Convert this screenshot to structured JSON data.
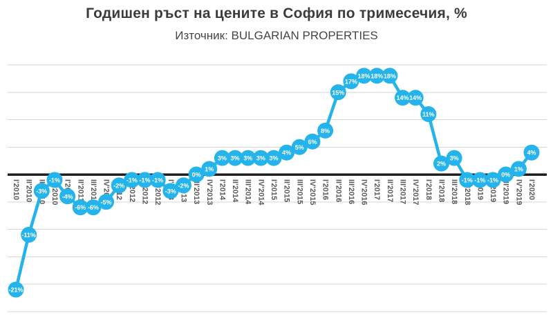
{
  "header": {
    "title": "Годишен ръст на цените в София по тримесечия, %",
    "subtitle": "Източник: BULGARIAN PROPERTIES"
  },
  "colors": {
    "marker": "#24b3ea",
    "line": "#24b3ea",
    "marker_text": "#ffffff",
    "grid": "#d6d6d6",
    "zero_axis": "#1f1f1f",
    "axis_label": "#595959",
    "title_text": "#3b3b3b"
  },
  "chart_data": {
    "type": "line",
    "title": "Годишен ръст на цените в София по тримесечия, %",
    "source": "Източник: BULGARIAN PROPERTIES",
    "unit": "%",
    "legend": "none",
    "grid": {
      "show": true,
      "min": -25,
      "max": 20,
      "step": 5
    },
    "ylim": [
      -25,
      21
    ],
    "categories": [
      "I'2010",
      "II'2010",
      "III'2010",
      "IV'2010",
      "I'2011",
      "II'2011",
      "III'2011",
      "IV'2011",
      "I'2012",
      "II'2012",
      "III'2012",
      "IV'2012",
      "I'2013",
      "II'2013",
      "III'2013",
      "IV'2013",
      "I'2014",
      "II'2014",
      "III'2014",
      "IV'2014",
      "I'2015",
      "II'2015",
      "III'2015",
      "IV'2015",
      "I'2016",
      "II'2016",
      "III'2016",
      "IV'2016",
      "I'2017",
      "II'2017",
      "III'2017",
      "IV'2017",
      "I'2018",
      "II'2018",
      "III'2018",
      "IV'2018",
      "I'2019",
      "II'2019",
      "III'2019",
      "IV'2019",
      "I'2020"
    ],
    "values": [
      -21,
      -11,
      -3,
      -1,
      -4,
      -6,
      -6,
      -5,
      -2,
      -1,
      -1,
      -1,
      -3,
      -2,
      0,
      1,
      3,
      3,
      3,
      3,
      3,
      4,
      5,
      6,
      8,
      15,
      17,
      18,
      18,
      18,
      14,
      14,
      11,
      2,
      3,
      -1,
      -1,
      -1,
      0,
      1,
      4
    ]
  }
}
